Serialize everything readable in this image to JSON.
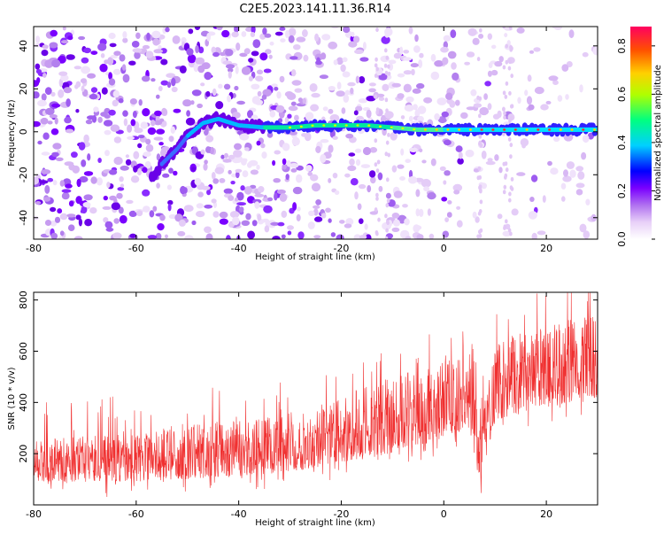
{
  "title": "C2E5.2023.141.11.36.R14",
  "chart_data": [
    {
      "type": "heatmap",
      "name": "spectrogram",
      "xlabel": "Height of straight line (km)",
      "ylabel": "Frequency (Hz)",
      "xlim": [
        -80,
        30
      ],
      "ylim": [
        -50,
        49
      ],
      "x_ticks": [
        -80,
        -60,
        -40,
        -20,
        0,
        20
      ],
      "y_ticks": [
        -40,
        -20,
        0,
        20,
        40
      ],
      "colorbar": {
        "label": "Normalized spectral amplitude",
        "range": [
          0.0,
          0.88
        ],
        "ticks": [
          0.0,
          0.2,
          0.4,
          0.6,
          0.8
        ],
        "colormap": [
          "#ffffff",
          "#e8d0f8",
          "#b070f0",
          "#7a00ff",
          "#0000ff",
          "#00d0ff",
          "#00ff80",
          "#b0ff00",
          "#ffd000",
          "#ff5000",
          "#ff0060"
        ]
      },
      "ridge": {
        "description": "main tone frequency trace",
        "points": [
          [
            -57,
            -22
          ],
          [
            -55,
            -15
          ],
          [
            -52,
            -8
          ],
          [
            -50,
            -2
          ],
          [
            -47,
            4
          ],
          [
            -44,
            6
          ],
          [
            -40,
            3
          ],
          [
            -35,
            2
          ],
          [
            -30,
            2
          ],
          [
            -25,
            3
          ],
          [
            -20,
            3
          ],
          [
            -15,
            3
          ],
          [
            -10,
            2
          ],
          [
            -5,
            1
          ],
          [
            0,
            1
          ],
          [
            5,
            1
          ],
          [
            10,
            1
          ],
          [
            15,
            1
          ],
          [
            20,
            1
          ],
          [
            25,
            1
          ],
          [
            30,
            1
          ]
        ]
      }
    },
    {
      "type": "line",
      "name": "snr",
      "xlabel": "Height of straight line (km)",
      "ylabel": "SNR (10 * v/v)",
      "xlim": [
        -80,
        30
      ],
      "ylim": [
        0,
        830
      ],
      "x_ticks": [
        -80,
        -60,
        -40,
        -20,
        0,
        20
      ],
      "y_ticks": [
        200,
        400,
        600,
        800
      ],
      "color": "#f03030",
      "envelope": {
        "x": [
          -80,
          -70,
          -60,
          -50,
          -40,
          -35,
          -30,
          -20,
          -15,
          -10,
          0,
          5,
          7,
          10,
          20,
          30
        ],
        "low": [
          90,
          90,
          90,
          100,
          110,
          120,
          130,
          160,
          180,
          200,
          260,
          300,
          80,
          330,
          380,
          420
        ],
        "high": [
          250,
          270,
          280,
          320,
          330,
          340,
          360,
          420,
          470,
          500,
          580,
          620,
          300,
          640,
          700,
          750
        ]
      }
    }
  ]
}
